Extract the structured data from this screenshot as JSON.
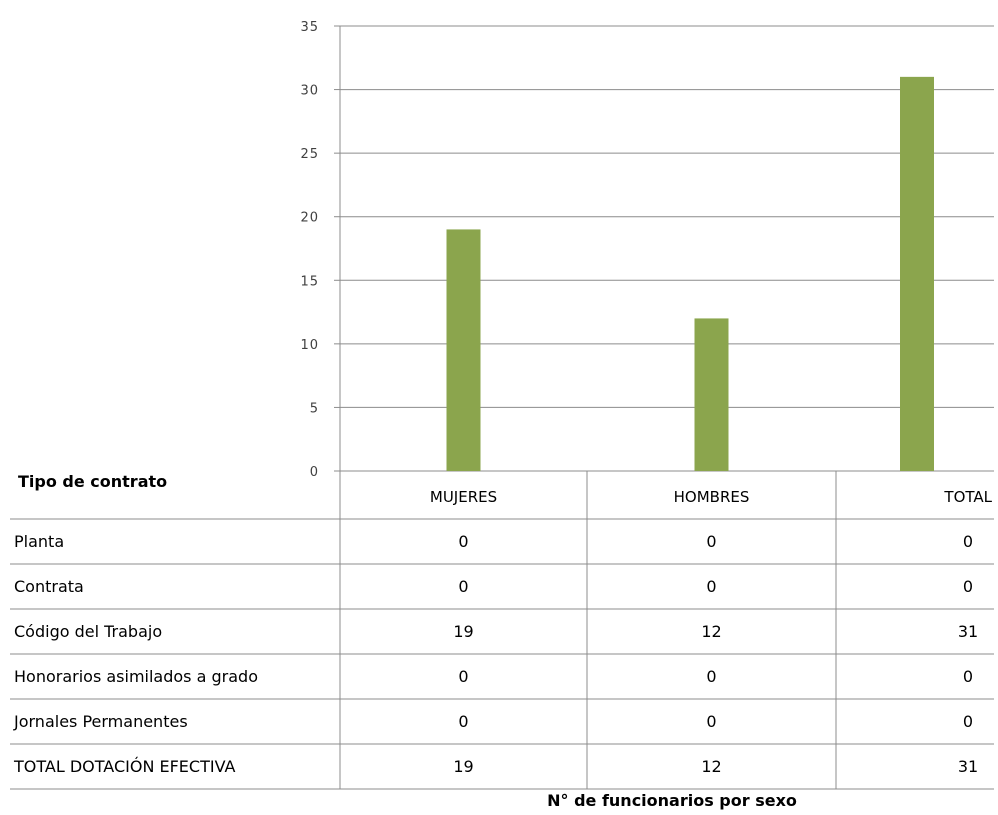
{
  "chart_data": {
    "type": "bar",
    "categories": [
      "MUJERES",
      "HOMBRES",
      "TOTAL"
    ],
    "values": [
      19,
      12,
      31
    ],
    "ylim": [
      0,
      35
    ],
    "yticks": [
      0,
      5,
      10,
      15,
      20,
      25,
      30,
      35
    ],
    "grid": true,
    "bar_color": "#8BA54D",
    "xlabel": "N° de funcionarios por sexo",
    "table": {
      "corner_header": "Tipo de contrato",
      "rows": [
        {
          "label": "Planta",
          "values": [
            0,
            0,
            0
          ]
        },
        {
          "label": "Contrata",
          "values": [
            0,
            0,
            0
          ]
        },
        {
          "label": "Código del Trabajo",
          "values": [
            19,
            12,
            31
          ]
        },
        {
          "label": "Honorarios asimilados a grado",
          "values": [
            0,
            0,
            0
          ]
        },
        {
          "label": "Jornales Permanentes",
          "values": [
            0,
            0,
            0
          ]
        },
        {
          "label": "TOTAL DOTACIÓN EFECTIVA",
          "values": [
            19,
            12,
            31
          ]
        }
      ]
    }
  }
}
